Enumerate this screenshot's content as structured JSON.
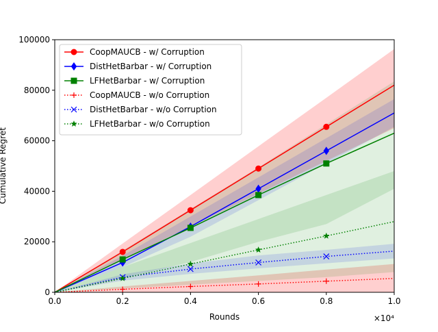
{
  "chart_data": {
    "type": "line",
    "title": "",
    "xlabel": "Rounds",
    "ylabel": "Cumulative Regret",
    "x_multiplier_label": "×10⁴",
    "xlim": [
      0,
      10000
    ],
    "ylim": [
      0,
      100000
    ],
    "x_ticks": [
      0,
      2000,
      4000,
      6000,
      8000,
      10000
    ],
    "x_tick_labels": [
      "0.0",
      "0.2",
      "0.4",
      "0.6",
      "0.8",
      "1.0"
    ],
    "y_ticks": [
      0,
      20000,
      40000,
      60000,
      80000,
      100000
    ],
    "y_tick_labels": [
      "0",
      "20000",
      "40000",
      "60000",
      "80000",
      "100000"
    ],
    "grid": false,
    "legend_position": "upper-left",
    "x": [
      0,
      2000,
      4000,
      6000,
      8000,
      10000
    ],
    "series": [
      {
        "name": "CoopMAUCB - w/ Corruption",
        "color": "#ff0000",
        "linestyle": "solid",
        "marker": "circle",
        "values": [
          0,
          16000,
          32500,
          49000,
          65500,
          82000
        ],
        "band_upper": [
          0,
          19300,
          38500,
          57800,
          77000,
          96300
        ],
        "band_lower": [
          0,
          13000,
          26000,
          39000,
          52000,
          65000
        ]
      },
      {
        "name": "DistHetBarbar - w/ Corruption",
        "color": "#0000ff",
        "linestyle": "solid",
        "marker": "diamond",
        "values": [
          0,
          11800,
          26000,
          41000,
          56000,
          71000
        ],
        "band_upper": [
          0,
          14500,
          30000,
          45500,
          61000,
          76500
        ],
        "band_lower": [
          0,
          10000,
          22000,
          36500,
          51000,
          65500
        ]
      },
      {
        "name": "LFHetBarbar - w/ Corruption",
        "color": "#008000",
        "linestyle": "solid",
        "marker": "square",
        "values": [
          0,
          13000,
          25500,
          38500,
          51000,
          63000
        ],
        "band_upper": [
          0,
          16500,
          33000,
          49500,
          66500,
          83500
        ],
        "band_lower": [
          0,
          5500,
          12000,
          20000,
          27000,
          41000
        ]
      },
      {
        "name": "CoopMAUCB - w/o Corruption",
        "color": "#ff0000",
        "linestyle": "dotted",
        "marker": "plus",
        "values": [
          0,
          1200,
          2300,
          3300,
          4400,
          5500
        ],
        "band_upper": [
          0,
          2300,
          4500,
          6700,
          9000,
          11200
        ],
        "band_lower": [
          0,
          0,
          0,
          0,
          0,
          0
        ]
      },
      {
        "name": "DistHetBarbar - w/o Corruption",
        "color": "#0000ff",
        "linestyle": "dotted",
        "marker": "x",
        "values": [
          0,
          6000,
          9200,
          11800,
          14200,
          16300
        ],
        "band_upper": [
          0,
          7100,
          11400,
          14600,
          16800,
          19200
        ],
        "band_lower": [
          0,
          4600,
          7300,
          9500,
          11500,
          13400
        ]
      },
      {
        "name": "LFHetBarbar - w/o Corruption",
        "color": "#008000",
        "linestyle": "dotted",
        "marker": "star",
        "values": [
          0,
          5500,
          11200,
          16800,
          22300,
          28000
        ],
        "band_upper": [
          0,
          10000,
          19500,
          29000,
          38500,
          48000
        ],
        "band_lower": [
          0,
          1500,
          3000,
          4500,
          6000,
          8000
        ]
      }
    ]
  }
}
